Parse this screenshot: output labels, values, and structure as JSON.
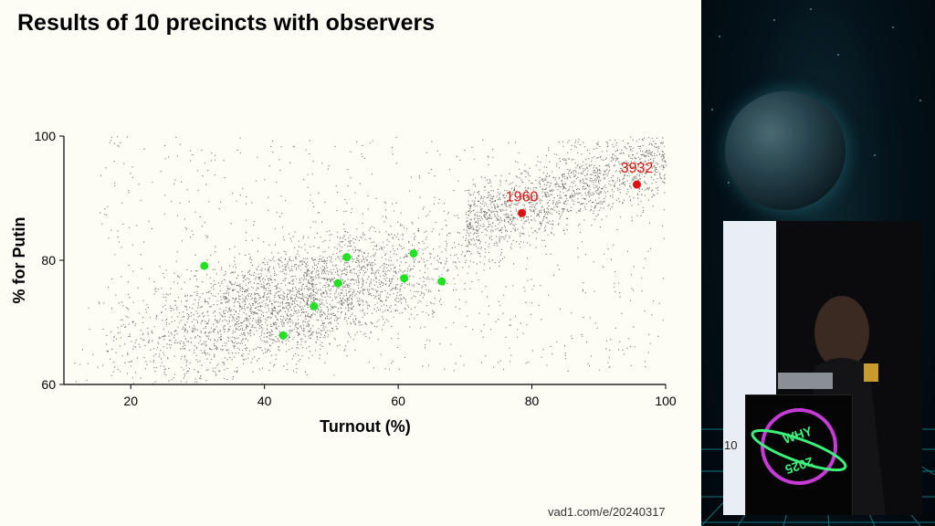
{
  "slide": {
    "title": "Results of 10 precincts with observers",
    "footer_url": "vad1.com/e/20240317"
  },
  "side_panel": {
    "screen_label": "10",
    "logo_text_top": "WHY",
    "logo_text_bottom": "2025"
  },
  "chart_data": {
    "type": "scatter",
    "title": "",
    "xlabel": "Turnout (%)",
    "ylabel": "% for Putin",
    "xlim": [
      10,
      100
    ],
    "ylim": [
      60,
      100
    ],
    "xticks": [
      20,
      40,
      60,
      80,
      100
    ],
    "yticks": [
      60,
      80,
      100
    ],
    "grid": false,
    "series": [
      {
        "role": "background-precincts",
        "color": "#000000",
        "points": []
      },
      {
        "role": "observed-precincts",
        "color": "#22e022",
        "points": [
          {
            "x": 31,
            "y": 79.1
          },
          {
            "x": 42.8,
            "y": 67.9
          },
          {
            "x": 47.4,
            "y": 72.6
          },
          {
            "x": 51,
            "y": 76.3
          },
          {
            "x": 52.3,
            "y": 80.5
          },
          {
            "x": 60.9,
            "y": 77.1
          },
          {
            "x": 62.3,
            "y": 81.1
          },
          {
            "x": 66.5,
            "y": 76.6
          }
        ]
      },
      {
        "role": "labeled-precincts",
        "color": "#e01010",
        "points": [
          {
            "x": 78.5,
            "y": 87.6,
            "label": "1960"
          },
          {
            "x": 95.7,
            "y": 92.2,
            "label": "3932"
          }
        ]
      }
    ]
  }
}
